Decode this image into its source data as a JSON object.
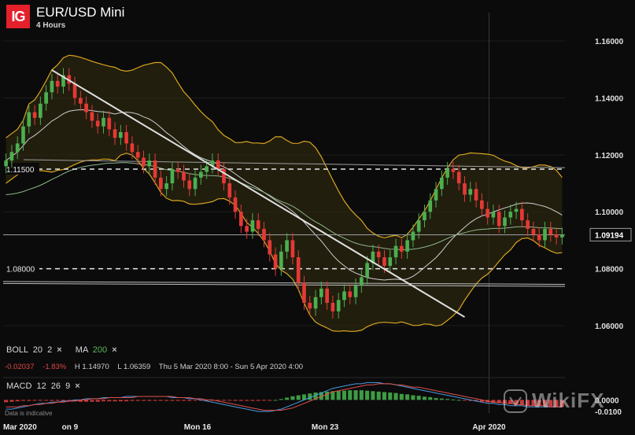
{
  "header": {
    "logo": "IG",
    "title": "EUR/USD Mini",
    "timeframe": "4 Hours"
  },
  "indicators": {
    "boll": {
      "label": "BOLL",
      "p1": "20",
      "p2": "2"
    },
    "ma": {
      "label": "MA",
      "period": "200"
    },
    "macd": {
      "label": "MACD",
      "p1": "12",
      "p2": "26",
      "p3": "9"
    },
    "close_icon": "×"
  },
  "stats": {
    "change": "-0.02037",
    "change_pct": "-1.83%",
    "high": "H 1.14970",
    "low": "L 1.06359",
    "range": "Thu 5 Mar 2020 8:00 - Sun 5 Apr 2020 4:00"
  },
  "disclaimer": "Data is indicative",
  "watermark": "WikiFX",
  "colors": {
    "up": "#4caf50",
    "down": "#e53935",
    "band": "#d9a520",
    "midline": "#cfcfcf",
    "ma200": "#8fb58a",
    "macd": "#4a9be0",
    "signal": "#e05050"
  },
  "chart_data": {
    "type": "candlestick",
    "ylim": [
      1.055,
      1.17
    ],
    "y_ticks": [
      "1.16000",
      "1.14000",
      "1.12000",
      "1.10000",
      "1.08000",
      "1.06000"
    ],
    "x_ticks": [
      "Mar 2020",
      "on 9",
      "Mon 16",
      "Mon 23",
      "Apr 2020"
    ],
    "x_tick_dates": [
      "2020-03-05",
      "2020-03-09",
      "2020-03-16",
      "2020-03-23",
      "2020-04-01"
    ],
    "current_price": "1.09194",
    "levels": [
      {
        "label": "1.11500",
        "value": 1.115,
        "style": "dashed"
      },
      {
        "label": "1.08000",
        "value": 1.08,
        "style": "dashed"
      }
    ],
    "closes": [
      1.118,
      1.121,
      1.124,
      1.13,
      1.135,
      1.133,
      1.138,
      1.142,
      1.146,
      1.144,
      1.148,
      1.145,
      1.14,
      1.138,
      1.135,
      1.132,
      1.13,
      1.133,
      1.129,
      1.126,
      1.128,
      1.124,
      1.121,
      1.119,
      1.116,
      1.118,
      1.112,
      1.108,
      1.11,
      1.115,
      1.114,
      1.111,
      1.108,
      1.112,
      1.114,
      1.116,
      1.118,
      1.115,
      1.11,
      1.105,
      1.1,
      1.095,
      1.093,
      1.097,
      1.094,
      1.09,
      1.085,
      1.08,
      1.086,
      1.09,
      1.084,
      1.075,
      1.068,
      1.066,
      1.07,
      1.073,
      1.068,
      1.065,
      1.069,
      1.072,
      1.07,
      1.074,
      1.077,
      1.082,
      1.086,
      1.084,
      1.081,
      1.084,
      1.088,
      1.086,
      1.09,
      1.093,
      1.097,
      1.1,
      1.104,
      1.108,
      1.112,
      1.115,
      1.114,
      1.11,
      1.106,
      1.108,
      1.104,
      1.101,
      1.098,
      1.1,
      1.095,
      1.098,
      1.1,
      1.101,
      1.097,
      1.094,
      1.092,
      1.09,
      1.094,
      1.092,
      1.091,
      1.0919
    ],
    "macd": {
      "hist": [
        -0.0005,
        -0.0004,
        -0.0003,
        -0.0002,
        -0.0002,
        -0.0001,
        -0.0001,
        -0.0001,
        -0.0002,
        -0.0002,
        -0.0003,
        -0.0003,
        -0.0003,
        -0.0004,
        -0.0004,
        -0.0004,
        -0.0004,
        -0.0003,
        -0.0003,
        -0.0003,
        -0.0003,
        -0.0003,
        -0.0002,
        -0.0002,
        -0.0002,
        -0.0002,
        -0.0002,
        -0.0002,
        -0.0002,
        -0.0002,
        -0.0002,
        -0.0002,
        -0.0002,
        -0.0001,
        -0.0001,
        -0.0001,
        -0.0001,
        -0.0001,
        -0.0001,
        -0.0001,
        -0.0002,
        -0.0002,
        -0.0002,
        -0.0002,
        -0.0002,
        -0.0001,
        -0.0001,
        0,
        0.0002,
        0.0005,
        0.0008,
        0.001,
        0.0012,
        0.0014,
        0.0016,
        0.0017,
        0.0018,
        0.0019,
        0.002,
        0.002,
        0.0021,
        0.0021,
        0.0021,
        0.002,
        0.0019,
        0.0018,
        0.0017,
        0.0016,
        0.0015,
        0.0013,
        0.0012,
        0.001,
        0.0009,
        0.0007,
        0.0006,
        0.0004,
        0.0003,
        0.0002,
        0.0001,
        0,
        -0.0001,
        -0.0002,
        -0.0003,
        -0.0004,
        -0.0005,
        -0.0006,
        -0.0007,
        -0.0008,
        -0.0009,
        -0.001,
        -0.0011,
        -0.0012,
        -0.0013,
        -0.0013,
        -0.0014,
        -0.0014,
        -0.0015,
        -0.0015
      ],
      "macd_line": [
        -0.008,
        -0.008,
        -0.007,
        -0.006,
        -0.005,
        -0.004,
        -0.003,
        -0.003,
        -0.002,
        -0.002,
        -0.001,
        -0.001,
        0,
        0,
        0.001,
        0.001,
        0.001,
        0.002,
        0.002,
        0.002,
        0.002,
        0.003,
        0.003,
        0.003,
        0.003,
        0.003,
        0.003,
        0.003,
        0.003,
        0.002,
        0.002,
        0.002,
        0.001,
        0.001,
        0,
        -0.001,
        -0.002,
        -0.003,
        -0.004,
        -0.005,
        -0.006,
        -0.007,
        -0.008,
        -0.009,
        -0.01,
        -0.01,
        -0.01,
        -0.009,
        -0.008,
        -0.006,
        -0.004,
        -0.002,
        0,
        0.002,
        0.004,
        0.006,
        0.008,
        0.01,
        0.011,
        0.012,
        0.013,
        0.014,
        0.014,
        0.015,
        0.015,
        0.015,
        0.014,
        0.014,
        0.013,
        0.012,
        0.011,
        0.01,
        0.009,
        0.008,
        0.007,
        0.006,
        0.005,
        0.004,
        0.003,
        0.002,
        0.001,
        0,
        -0.001,
        -0.002,
        -0.003,
        -0.003,
        -0.004,
        -0.004,
        -0.005,
        -0.005,
        -0.005,
        -0.006,
        -0.006,
        -0.006,
        -0.006,
        -0.006,
        -0.006,
        -0.006
      ],
      "signal_line": [
        -0.006,
        -0.006,
        -0.006,
        -0.005,
        -0.005,
        -0.004,
        -0.004,
        -0.003,
        -0.003,
        -0.002,
        -0.002,
        -0.001,
        -0.001,
        0,
        0,
        0.001,
        0.001,
        0.001,
        0.002,
        0.002,
        0.002,
        0.002,
        0.002,
        0.003,
        0.003,
        0.003,
        0.003,
        0.003,
        0.003,
        0.003,
        0.002,
        0.002,
        0.002,
        0.001,
        0.001,
        0,
        0,
        -0.001,
        -0.002,
        -0.003,
        -0.004,
        -0.005,
        -0.006,
        -0.007,
        -0.008,
        -0.009,
        -0.009,
        -0.009,
        -0.009,
        -0.008,
        -0.007,
        -0.005,
        -0.003,
        -0.001,
        0.001,
        0.003,
        0.005,
        0.007,
        0.008,
        0.009,
        0.01,
        0.011,
        0.012,
        0.013,
        0.013,
        0.014,
        0.014,
        0.014,
        0.013,
        0.013,
        0.012,
        0.011,
        0.011,
        0.01,
        0.009,
        0.008,
        0.007,
        0.006,
        0.005,
        0.004,
        0.003,
        0.002,
        0.001,
        0,
        -0.001,
        -0.002,
        -0.002,
        -0.003,
        -0.003,
        -0.004,
        -0.004,
        -0.005,
        -0.005,
        -0.005,
        -0.005,
        -0.006,
        -0.006,
        -0.006
      ],
      "y_ticks": [
        "0.0000",
        "-0.0100"
      ]
    }
  }
}
